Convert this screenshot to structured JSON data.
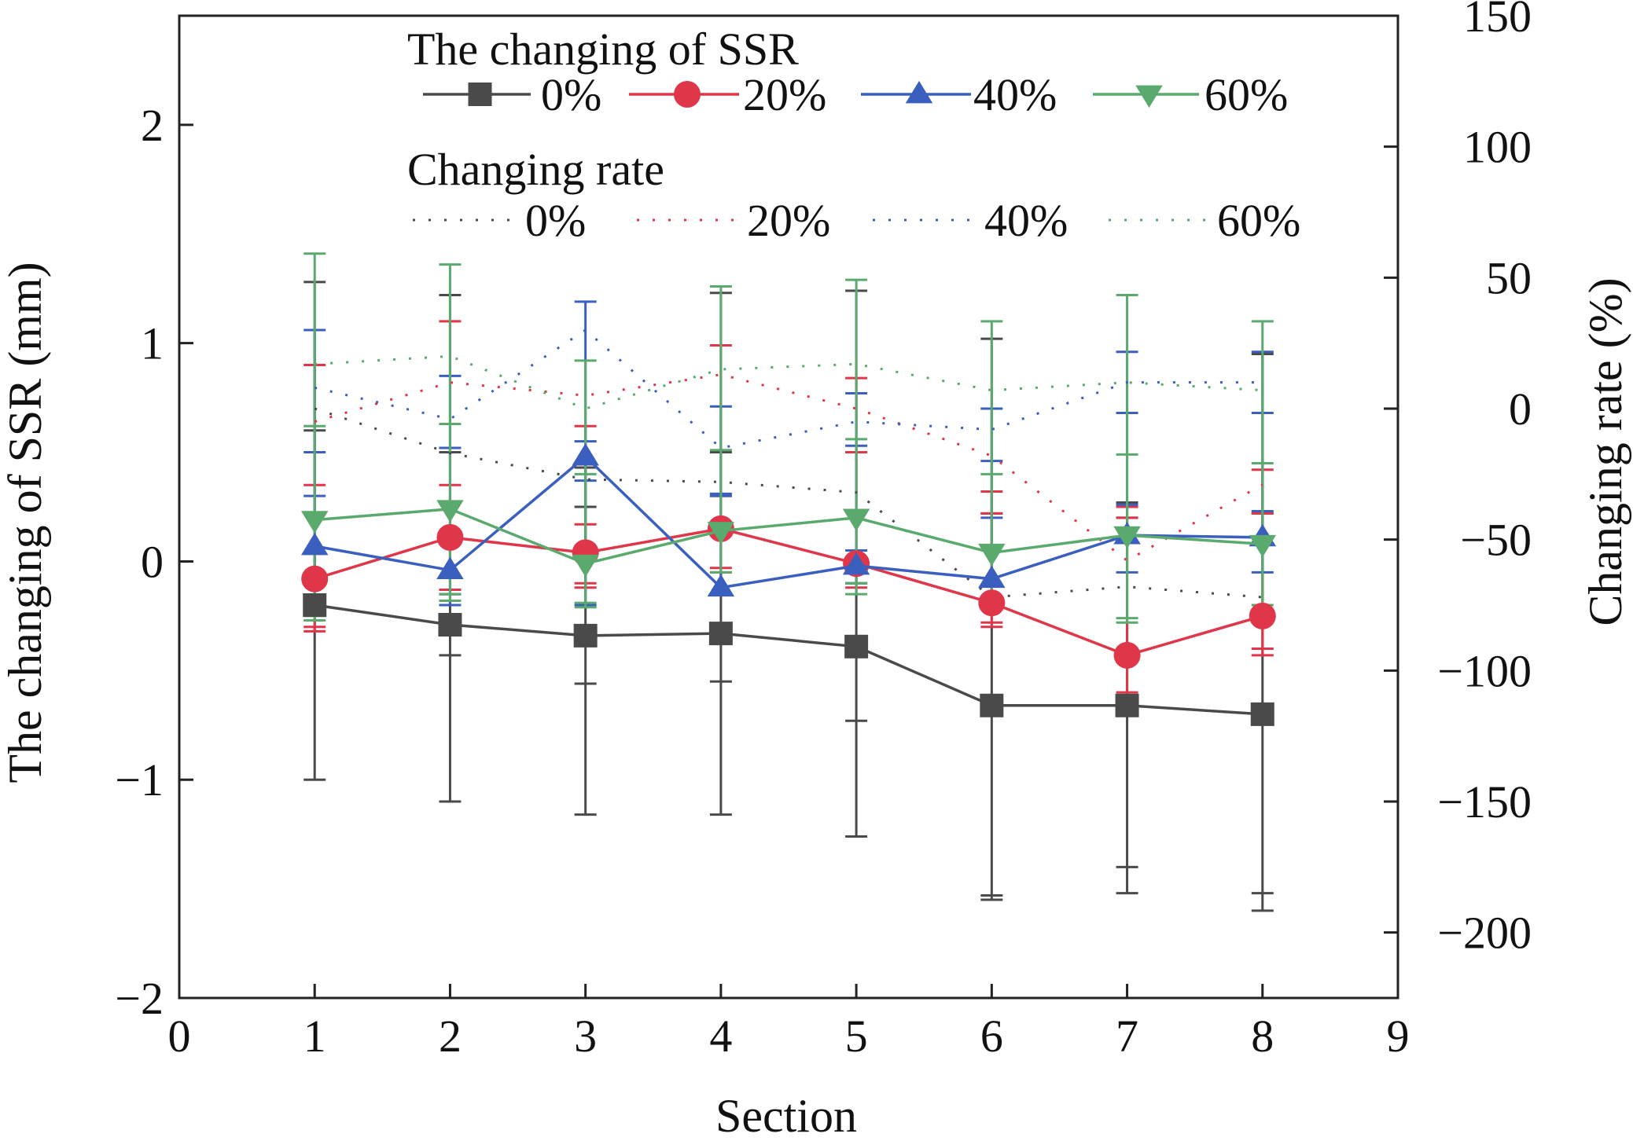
{
  "chart_data": {
    "type": "line",
    "xlabel": "Section",
    "ylabel": "The changing of SSR (mm)",
    "y2label": "Changing rate (%)",
    "xlim": [
      0,
      9
    ],
    "ylim": [
      -2,
      2.5
    ],
    "y2lim": [
      -225,
      150
    ],
    "x_ticks": [
      "0",
      "1",
      "2",
      "3",
      "4",
      "5",
      "6",
      "7",
      "8",
      "9"
    ],
    "y_ticks": [
      "−2",
      "−1",
      "0",
      "1",
      "2"
    ],
    "y2_ticks": [
      "−200",
      "−150",
      "−100",
      "−50",
      "0",
      "50",
      "100",
      "150"
    ],
    "x": [
      1,
      2,
      3,
      4,
      5,
      6,
      7,
      8
    ],
    "legend": {
      "ssr_title": "The changing of SSR",
      "rate_title": "Changing rate",
      "placement": "top"
    },
    "ssr_series": [
      {
        "name": "0%",
        "color": "#4a4a4a",
        "marker": "square",
        "values": [
          -0.2,
          -0.29,
          -0.34,
          -0.33,
          -0.39,
          -0.66,
          -0.66,
          -0.7
        ],
        "err_high": [
          1.28,
          1.22,
          0.43,
          1.23,
          1.24,
          1.02,
          0.27,
          0.95
        ],
        "err_low": [
          -1.0,
          -1.1,
          -1.16,
          -1.16,
          -1.26,
          -1.55,
          -1.52,
          -1.6
        ],
        "err_high_inner": [
          0.6,
          0.5,
          0.25,
          0.5,
          0.5,
          0.22,
          0.2,
          0.22
        ],
        "err_low_inner": [
          -0.22,
          -0.43,
          -0.56,
          -0.55,
          -0.73,
          -1.53,
          -1.4,
          -1.52
        ]
      },
      {
        "name": "20%",
        "color": "#e0364a",
        "marker": "circle",
        "values": [
          -0.08,
          0.11,
          0.04,
          0.15,
          -0.01,
          -0.19,
          -0.43,
          -0.25
        ],
        "err_high": [
          0.9,
          1.1,
          0.62,
          0.99,
          0.84,
          0.32,
          0.25,
          0.42
        ],
        "err_low": [
          -0.32,
          -0.15,
          -0.12,
          -0.05,
          -0.12,
          -0.3,
          -0.62,
          -0.43
        ],
        "err_high_inner": [
          0.35,
          0.35,
          0.17,
          0.3,
          0.5,
          0.22,
          0.2,
          0.22
        ],
        "err_low_inner": [
          -0.3,
          -0.13,
          -0.1,
          -0.03,
          -0.1,
          -0.28,
          -0.6,
          -0.4
        ]
      },
      {
        "name": "40%",
        "color": "#3a5fbf",
        "marker": "triangle-up",
        "values": [
          0.07,
          -0.04,
          0.48,
          -0.12,
          -0.02,
          -0.08,
          0.12,
          0.11
        ],
        "err_high": [
          1.06,
          0.85,
          1.19,
          0.71,
          0.77,
          0.7,
          0.96,
          0.96
        ],
        "err_low": [
          -0.2,
          -0.2,
          -0.2,
          -0.15,
          -0.1,
          -0.2,
          -0.05,
          -0.05
        ],
        "err_high_inner": [
          0.5,
          0.52,
          0.55,
          0.31,
          0.53,
          0.46,
          0.68,
          0.68
        ],
        "err_low_inner": [
          0.3,
          -0.15,
          0.37,
          0.3,
          0.05,
          0.2,
          0.26,
          0.23
        ]
      },
      {
        "name": "60%",
        "color": "#5aaa6e",
        "marker": "triangle-down",
        "values": [
          0.19,
          0.24,
          -0.01,
          0.14,
          0.2,
          0.04,
          0.12,
          0.08
        ],
        "err_high": [
          1.41,
          1.36,
          0.92,
          1.26,
          1.29,
          1.1,
          1.22,
          1.1
        ],
        "err_low": [
          -0.27,
          -0.18,
          -0.21,
          -0.05,
          -0.15,
          -0.2,
          -0.28,
          -0.25
        ],
        "err_high_inner": [
          0.62,
          0.63,
          0.4,
          0.51,
          0.56,
          0.4,
          0.49,
          0.45
        ],
        "err_low_inner": [
          -0.25,
          -0.15,
          -0.19,
          0.12,
          -0.1,
          -0.18,
          -0.26,
          -0.2
        ]
      }
    ],
    "rate_series": [
      {
        "name": "0%",
        "color": "#4a4a4a",
        "values": [
          0,
          -17,
          -27,
          -28,
          -32,
          -72,
          -68,
          -72
        ]
      },
      {
        "name": "20%",
        "color": "#e0364a",
        "values": [
          -5,
          10,
          5,
          13,
          0,
          -18,
          -58,
          -29
        ]
      },
      {
        "name": "40%",
        "color": "#3a5fbf",
        "values": [
          8,
          -4,
          30,
          -15,
          -5,
          -8,
          10,
          10
        ]
      },
      {
        "name": "60%",
        "color": "#5aaa6e",
        "values": [
          17,
          20,
          0,
          15,
          17,
          7,
          10,
          7
        ]
      }
    ]
  }
}
